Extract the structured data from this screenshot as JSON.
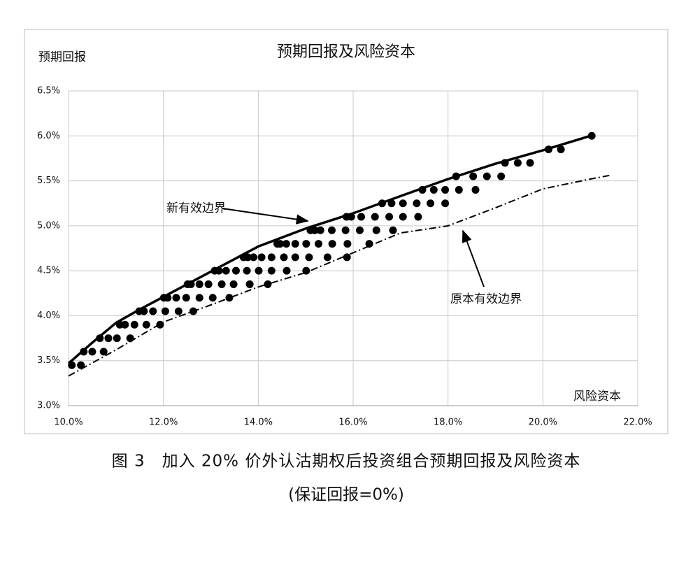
{
  "chart_data": {
    "type": "scatter",
    "title": "预期回报及风险资本",
    "y_label": "预期回报",
    "x_label": "风险资本",
    "xlim": [
      10,
      22
    ],
    "ylim": [
      3.0,
      6.5
    ],
    "grid": true,
    "xticks": [
      {
        "value": 10,
        "label": "10.0%"
      },
      {
        "value": 12,
        "label": "12.0%"
      },
      {
        "value": 14,
        "label": "14.0%"
      },
      {
        "value": 16,
        "label": "16.0%"
      },
      {
        "value": 18,
        "label": "18.0%"
      },
      {
        "value": 20,
        "label": "20.0%"
      },
      {
        "value": 22,
        "label": "22.0%"
      }
    ],
    "yticks": [
      {
        "value": 3.0,
        "label": "3.0%"
      },
      {
        "value": 3.5,
        "label": "3.5%"
      },
      {
        "value": 4.0,
        "label": "4.0%"
      },
      {
        "value": 4.5,
        "label": "4.5%"
      },
      {
        "value": 5.0,
        "label": "5.0%"
      },
      {
        "value": 5.5,
        "label": "5.5%"
      },
      {
        "value": 6.0,
        "label": "6.0%"
      },
      {
        "value": 6.5,
        "label": "6.5%"
      }
    ],
    "series": [
      {
        "type": "scatter",
        "color": "#000000",
        "x": [
          10.07,
          10.26,
          10.32,
          10.5,
          10.74,
          10.66,
          10.84,
          11.02,
          11.3,
          11.08,
          11.19,
          11.39,
          11.64,
          11.93,
          11.49,
          11.59,
          11.78,
          12.04,
          12.32,
          12.63,
          12.01,
          12.09,
          12.27,
          12.48,
          12.76,
          13.04,
          13.39,
          12.51,
          12.58,
          12.76,
          12.95,
          13.23,
          13.48,
          13.82,
          14.2,
          13.08,
          13.17,
          13.32,
          13.53,
          13.76,
          14.01,
          14.28,
          14.6,
          15.01,
          13.69,
          13.78,
          13.9,
          14.07,
          14.28,
          14.54,
          14.78,
          15.07,
          15.46,
          15.87,
          14.4,
          14.46,
          14.59,
          14.78,
          15.01,
          15.27,
          15.56,
          15.88,
          16.34,
          15.1,
          15.19,
          15.31,
          15.55,
          15.84,
          16.14,
          16.49,
          16.84,
          15.86,
          15.96,
          16.17,
          16.46,
          16.76,
          17.05,
          17.37,
          16.61,
          16.81,
          17.05,
          17.34,
          17.63,
          17.94,
          17.46,
          17.7,
          17.94,
          18.23,
          18.58,
          18.17,
          18.53,
          18.82,
          19.12,
          19.2,
          19.47,
          19.73,
          20.12,
          20.38,
          21.03
        ],
        "values": [
          3.45,
          3.45,
          3.6,
          3.6,
          3.6,
          3.75,
          3.75,
          3.75,
          3.75,
          3.9,
          3.9,
          3.9,
          3.9,
          3.9,
          4.05,
          4.05,
          4.05,
          4.05,
          4.05,
          4.05,
          4.2,
          4.2,
          4.2,
          4.2,
          4.2,
          4.2,
          4.2,
          4.35,
          4.35,
          4.35,
          4.35,
          4.35,
          4.35,
          4.35,
          4.35,
          4.5,
          4.5,
          4.5,
          4.5,
          4.5,
          4.5,
          4.5,
          4.5,
          4.5,
          4.65,
          4.65,
          4.65,
          4.65,
          4.65,
          4.65,
          4.65,
          4.65,
          4.65,
          4.65,
          4.8,
          4.8,
          4.8,
          4.8,
          4.8,
          4.8,
          4.8,
          4.8,
          4.8,
          4.95,
          4.95,
          4.95,
          4.95,
          4.95,
          4.95,
          4.95,
          4.95,
          5.1,
          5.1,
          5.1,
          5.1,
          5.1,
          5.1,
          5.1,
          5.25,
          5.25,
          5.25,
          5.25,
          5.25,
          5.25,
          5.4,
          5.4,
          5.4,
          5.4,
          5.4,
          5.55,
          5.55,
          5.55,
          5.55,
          5.7,
          5.7,
          5.7,
          5.85,
          5.85,
          6.0
        ]
      },
      {
        "type": "line",
        "name": "新有效边界",
        "style": "solid",
        "color": "#000000",
        "x": [
          10.0,
          10.5,
          11,
          11.5,
          12,
          13,
          14,
          15,
          16,
          17,
          18,
          19,
          20,
          21
        ],
        "values": [
          3.47,
          3.7,
          3.92,
          4.07,
          4.21,
          4.49,
          4.77,
          4.97,
          5.14,
          5.33,
          5.52,
          5.69,
          5.84,
          6.0
        ]
      },
      {
        "type": "line",
        "name": "原本有效边界",
        "style": "dashdot",
        "color": "#000000",
        "x": [
          10.0,
          11,
          12,
          13,
          14,
          15,
          16,
          17,
          18,
          19,
          20,
          21,
          21.4
        ],
        "values": [
          3.33,
          3.62,
          3.93,
          4.12,
          4.32,
          4.48,
          4.7,
          4.92,
          5.0,
          5.2,
          5.41,
          5.52,
          5.56
        ]
      }
    ]
  },
  "caption": [
    "图 3　加入 20% 价外认沽期权后投资组合预期回报及风险资本",
    "(保证回报=0%)"
  ]
}
